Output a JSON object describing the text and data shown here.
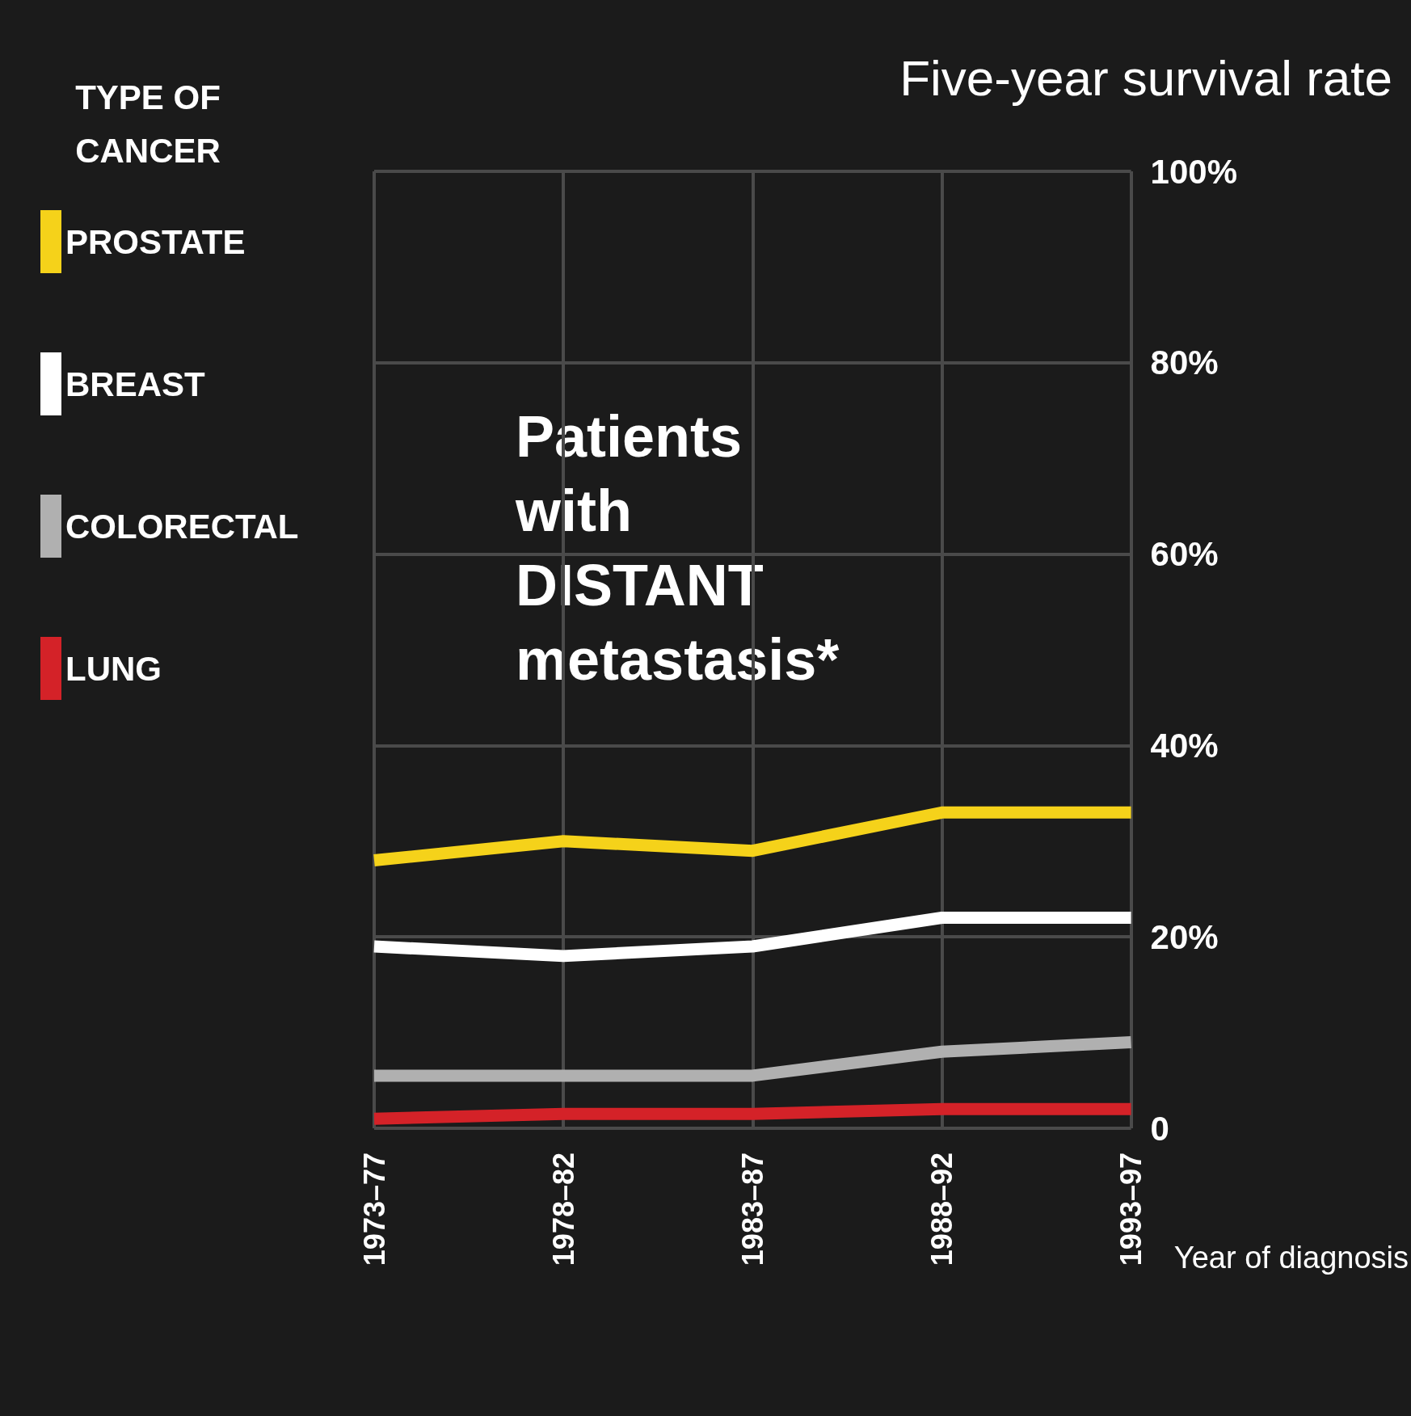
{
  "chart_data": {
    "type": "line",
    "title": "Five-year survival rate",
    "legend_title": "TYPE OF CANCER",
    "xlabel": "Year of diagnosis",
    "annotations": [
      "Patients with DISTANT metastasis*"
    ],
    "categories": [
      "1973–77",
      "1978–82",
      "1983–87",
      "1988–92",
      "1993–97"
    ],
    "series": [
      {
        "name": "PROSTATE",
        "color": "#f5d21a",
        "values": [
          28,
          30,
          29,
          33,
          33
        ]
      },
      {
        "name": "BREAST",
        "color": "#ffffff",
        "values": [
          19,
          18,
          19,
          22,
          22
        ]
      },
      {
        "name": "COLORECTAL",
        "color": "#b0b0b0",
        "values": [
          5.5,
          5.5,
          5.5,
          8,
          9
        ]
      },
      {
        "name": "LUNG",
        "color": "#d42228",
        "values": [
          1,
          1.5,
          1.5,
          2,
          2
        ]
      }
    ],
    "ylim": [
      0,
      100
    ],
    "yticks": [
      0,
      {
        "value": 20,
        "label": "20%"
      },
      {
        "value": 40,
        "label": "40%"
      },
      {
        "value": 60,
        "label": "60%"
      },
      {
        "value": 80,
        "label": "80%"
      },
      {
        "value": 100,
        "label": "100%"
      }
    ],
    "grid": true,
    "legend": "left",
    "marker": "none",
    "line_style": "solid"
  }
}
